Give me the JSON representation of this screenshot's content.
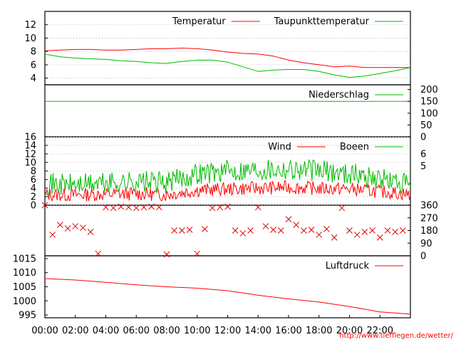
{
  "url_text": "http://www.tiefflegen.de/wetter/",
  "chart_data": {
    "type": "line",
    "x_axis": {
      "unit": "time of day",
      "range": [
        "00:00",
        "24:00"
      ],
      "tick_labels": [
        "00:00",
        "02:00",
        "04:00",
        "06:00",
        "08:00",
        "10:00",
        "12:00",
        "14:00",
        "16:00",
        "18:00",
        "20:00",
        "22:00"
      ]
    },
    "panels": [
      {
        "id": "temperature",
        "type": "line",
        "y_range": [
          3,
          14
        ],
        "y_ticks": [
          4,
          6,
          8,
          10,
          12
        ],
        "grid": true,
        "legend_position": "top-right",
        "series": [
          {
            "name": "Temperatur",
            "color": "#ff0000",
            "x": [
              "00:00",
              "01:00",
              "02:00",
              "03:00",
              "04:00",
              "05:00",
              "06:00",
              "07:00",
              "08:00",
              "09:00",
              "10:00",
              "11:00",
              "12:00",
              "13:00",
              "14:00",
              "15:00",
              "16:00",
              "17:00",
              "18:00",
              "19:00",
              "20:00",
              "21:00",
              "22:00",
              "23:00",
              "24:00"
            ],
            "values": [
              8.1,
              8.2,
              8.3,
              8.3,
              8.2,
              8.2,
              8.3,
              8.4,
              8.4,
              8.5,
              8.4,
              8.2,
              7.9,
              7.7,
              7.6,
              7.3,
              6.7,
              6.3,
              6.0,
              5.7,
              5.8,
              5.6,
              5.6,
              5.6,
              5.6
            ]
          },
          {
            "name": "Taupunkttemperatur",
            "color": "#00bb00",
            "x": [
              "00:00",
              "01:00",
              "02:00",
              "03:00",
              "04:00",
              "05:00",
              "06:00",
              "07:00",
              "08:00",
              "09:00",
              "10:00",
              "11:00",
              "12:00",
              "13:00",
              "14:00",
              "15:00",
              "16:00",
              "17:00",
              "18:00",
              "19:00",
              "20:00",
              "21:00",
              "22:00",
              "23:00",
              "24:00"
            ],
            "values": [
              7.6,
              7.2,
              7.0,
              6.9,
              6.8,
              6.6,
              6.5,
              6.3,
              6.2,
              6.5,
              6.7,
              6.7,
              6.4,
              5.7,
              5.0,
              5.2,
              5.3,
              5.3,
              5.0,
              4.5,
              4.1,
              4.3,
              4.7,
              5.1,
              5.6
            ]
          }
        ]
      },
      {
        "id": "precipitation",
        "type": "line",
        "y_range": [
          0,
          220
        ],
        "y_ticks": [
          0,
          50,
          100,
          150,
          200
        ],
        "y_axis_side": "right",
        "legend_position": "top-right",
        "series": [
          {
            "name": "Niederschlag",
            "color": "#00bb00",
            "x": [
              "00:00",
              "24:00"
            ],
            "values": [
              150,
              150
            ]
          }
        ]
      },
      {
        "id": "wind",
        "type": "line",
        "y_range": [
          0,
          16
        ],
        "y_ticks": [
          0,
          2,
          4,
          6,
          8,
          10,
          12,
          14,
          16
        ],
        "y2_ticks_right": [
          5,
          6
        ],
        "grid": true,
        "legend_position": "top-right",
        "series": [
          {
            "name": "Wind",
            "color": "#ff0000",
            "x": [
              "00:00",
              "02:00",
              "04:00",
              "06:00",
              "08:00",
              "10:00",
              "12:00",
              "14:00",
              "16:00",
              "18:00",
              "20:00",
              "22:00",
              "24:00"
            ],
            "values": [
              2.5,
              2.4,
              2.6,
              2.7,
              2.5,
              3.5,
              3.8,
              4.0,
              4.2,
              3.9,
              3.8,
              3.2,
              2.5
            ]
          },
          {
            "name": "Boeen",
            "color": "#00bb00",
            "x": [
              "00:00",
              "02:00",
              "04:00",
              "06:00",
              "08:00",
              "10:00",
              "12:00",
              "14:00",
              "16:00",
              "18:00",
              "20:00",
              "22:00",
              "24:00"
            ],
            "values": [
              5.0,
              4.8,
              5.2,
              5.5,
              5.2,
              7.5,
              8.0,
              8.5,
              8.6,
              8.0,
              7.5,
              6.2,
              4.5
            ]
          }
        ]
      },
      {
        "id": "wind-direction",
        "type": "scatter",
        "y_range": [
          0,
          360
        ],
        "y_ticks_right": [
          0,
          90,
          180,
          270,
          360
        ],
        "marker": "x",
        "color": "#dd0000",
        "x": [
          "00:00",
          "00:30",
          "01:00",
          "01:30",
          "02:00",
          "02:30",
          "03:00",
          "03:30",
          "04:00",
          "04:30",
          "05:00",
          "05:30",
          "06:00",
          "06:30",
          "07:00",
          "07:30",
          "08:00",
          "08:30",
          "09:00",
          "09:30",
          "10:00",
          "10:30",
          "11:00",
          "11:30",
          "12:00",
          "12:30",
          "13:00",
          "13:30",
          "14:00",
          "14:30",
          "15:00",
          "15:30",
          "16:00",
          "16:30",
          "17:00",
          "17:30",
          "18:00",
          "18:30",
          "19:00",
          "19:30",
          "20:00",
          "20:30",
          "21:00",
          "21:30",
          "22:00",
          "22:30",
          "23:00",
          "23:30"
        ],
        "values": [
          360,
          150,
          220,
          195,
          210,
          200,
          170,
          15,
          345,
          340,
          350,
          345,
          340,
          345,
          350,
          345,
          10,
          180,
          180,
          185,
          15,
          190,
          340,
          345,
          350,
          180,
          160,
          180,
          345,
          210,
          185,
          180,
          260,
          220,
          180,
          185,
          150,
          190,
          130,
          340,
          180,
          150,
          170,
          180,
          130,
          180,
          170,
          180
        ]
      },
      {
        "id": "pressure",
        "type": "line",
        "y_range": [
          994,
          1016
        ],
        "y_ticks": [
          995,
          1000,
          1005,
          1010,
          1015
        ],
        "legend_position": "top-right",
        "series": [
          {
            "name": "Luftdruck",
            "color": "#ff0000",
            "x": [
              "00:00",
              "02:00",
              "04:00",
              "06:00",
              "08:00",
              "10:00",
              "12:00",
              "14:00",
              "16:00",
              "18:00",
              "20:00",
              "22:00",
              "24:00"
            ],
            "values": [
              1007.9,
              1007.4,
              1006.6,
              1005.7,
              1005.0,
              1004.5,
              1003.6,
              1002.0,
              1000.7,
              999.6,
              998.0,
              996.1,
              995.3
            ]
          }
        ]
      }
    ]
  }
}
